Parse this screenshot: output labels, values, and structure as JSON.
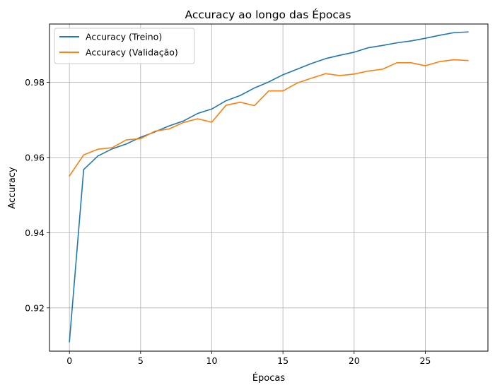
{
  "chart_data": {
    "type": "line",
    "title": "Accuracy ao longo das Épocas",
    "xlabel": "Épocas",
    "ylabel": "Accuracy",
    "xlim": [
      -1.4,
      29.4
    ],
    "ylim": [
      0.9085,
      0.9955
    ],
    "xticks": [
      0,
      5,
      10,
      15,
      20,
      25
    ],
    "yticks": [
      0.92,
      0.94,
      0.96,
      0.98
    ],
    "grid": true,
    "legend_position": "upper-left",
    "x": [
      0,
      1,
      2,
      3,
      4,
      5,
      6,
      7,
      8,
      9,
      10,
      11,
      12,
      13,
      14,
      15,
      16,
      17,
      18,
      19,
      20,
      21,
      22,
      23,
      24,
      25,
      26,
      27,
      28
    ],
    "series": [
      {
        "name": "Accuracy (Treino)",
        "color": "#1f77b4",
        "values": [
          0.911,
          0.9568,
          0.9604,
          0.9623,
          0.9636,
          0.9654,
          0.9668,
          0.9684,
          0.9697,
          0.9717,
          0.9729,
          0.9751,
          0.9765,
          0.9785,
          0.9801,
          0.982,
          0.9835,
          0.985,
          0.9863,
          0.9872,
          0.988,
          0.9892,
          0.9898,
          0.9905,
          0.991,
          0.9917,
          0.9925,
          0.9932,
          0.9934
        ]
      },
      {
        "name": "Accuracy (Validação)",
        "color": "#ff7f0e",
        "values": [
          0.9551,
          0.9607,
          0.9622,
          0.9626,
          0.9647,
          0.965,
          0.967,
          0.9676,
          0.9693,
          0.9703,
          0.9694,
          0.9739,
          0.9747,
          0.9738,
          0.9777,
          0.9777,
          0.9798,
          0.9811,
          0.9823,
          0.9818,
          0.9822,
          0.983,
          0.9835,
          0.9852,
          0.9852,
          0.9844,
          0.9855,
          0.986,
          0.9858
        ]
      }
    ]
  }
}
